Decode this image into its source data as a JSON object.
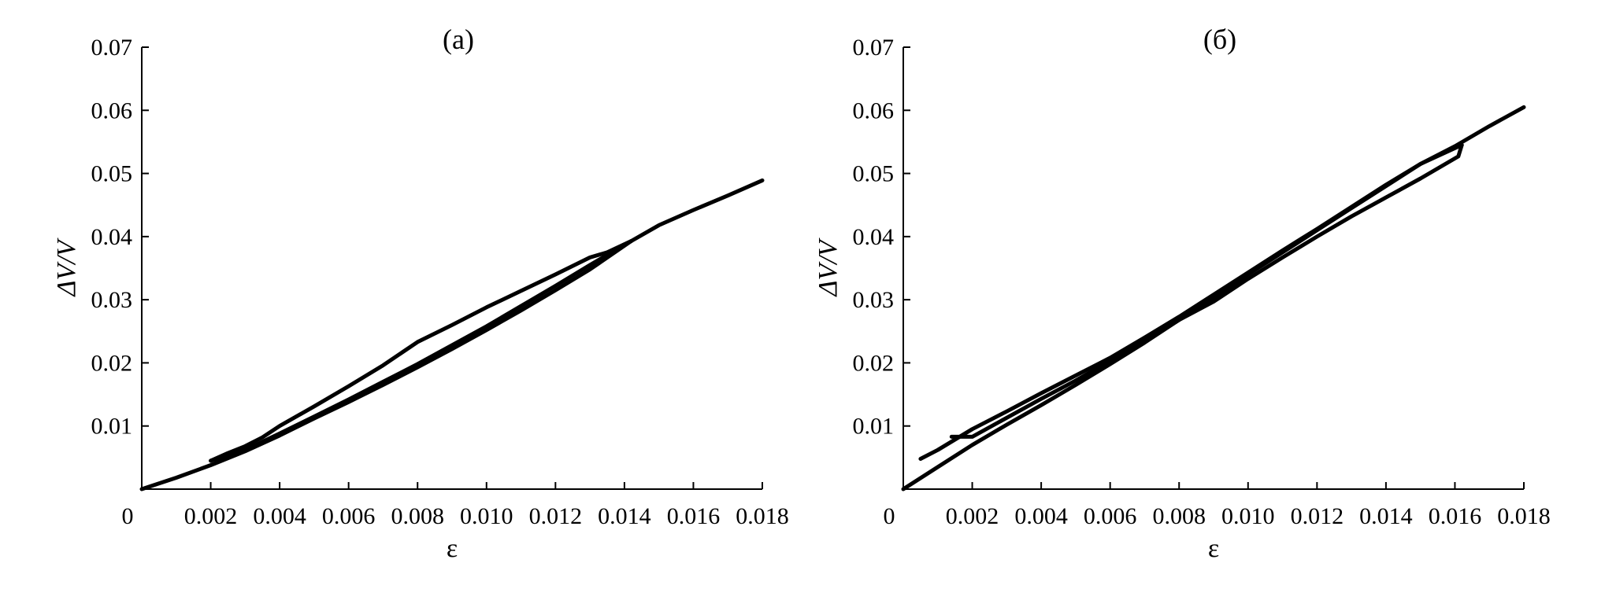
{
  "chart_data": [
    {
      "type": "line",
      "title": "(а)",
      "xlabel": "ε",
      "ylabel": "ΔV/V",
      "xlim": [
        0,
        0.018
      ],
      "ylim": [
        0,
        0.07
      ],
      "origin_label": "0",
      "x_ticks": [
        0.002,
        0.004,
        0.006,
        0.008,
        0.01,
        0.012,
        0.014,
        0.016,
        0.018
      ],
      "x_tick_labels": [
        "0.002",
        "0.004",
        "0.006",
        "0.008",
        "0.010",
        "0.012",
        "0.014",
        "0.016",
        "0.018"
      ],
      "y_ticks": [
        0.01,
        0.02,
        0.03,
        0.04,
        0.05,
        0.06,
        0.07
      ],
      "y_tick_labels": [
        "0.01",
        "0.02",
        "0.03",
        "0.04",
        "0.05",
        "0.06",
        "0.07"
      ],
      "grid": false,
      "series": [
        {
          "points": [
            [
              0.0,
              0.0
            ],
            [
              0.001,
              0.0018
            ],
            [
              0.002,
              0.0038
            ],
            [
              0.003,
              0.006
            ],
            [
              0.004,
              0.0085
            ],
            [
              0.005,
              0.0112
            ],
            [
              0.006,
              0.0138
            ],
            [
              0.007,
              0.0165
            ],
            [
              0.008,
              0.0193
            ],
            [
              0.009,
              0.0222
            ],
            [
              0.01,
              0.0252
            ],
            [
              0.011,
              0.0283
            ],
            [
              0.012,
              0.0315
            ],
            [
              0.013,
              0.0348
            ],
            [
              0.0142,
              0.0393
            ],
            [
              0.015,
              0.0418
            ],
            [
              0.016,
              0.0442
            ],
            [
              0.017,
              0.0465
            ],
            [
              0.018,
              0.0489
            ]
          ]
        },
        {
          "points": [
            [
              0.0142,
              0.0393
            ],
            [
              0.0135,
              0.0375
            ],
            [
              0.013,
              0.0367
            ],
            [
              0.012,
              0.034
            ],
            [
              0.011,
              0.0314
            ],
            [
              0.01,
              0.0288
            ],
            [
              0.009,
              0.026
            ],
            [
              0.008,
              0.0233
            ],
            [
              0.007,
              0.0196
            ],
            [
              0.006,
              0.0163
            ],
            [
              0.005,
              0.0131
            ],
            [
              0.004,
              0.01
            ],
            [
              0.0035,
              0.0082
            ],
            [
              0.003,
              0.0068
            ],
            [
              0.0025,
              0.0057
            ],
            [
              0.002,
              0.0045
            ]
          ]
        },
        {
          "points": [
            [
              0.002,
              0.0045
            ],
            [
              0.003,
              0.0062
            ],
            [
              0.004,
              0.0088
            ],
            [
              0.005,
              0.0115
            ],
            [
              0.006,
              0.0142
            ],
            [
              0.007,
              0.017
            ],
            [
              0.008,
              0.0198
            ],
            [
              0.009,
              0.0228
            ],
            [
              0.01,
              0.0258
            ],
            [
              0.011,
              0.029
            ],
            [
              0.012,
              0.0322
            ],
            [
              0.013,
              0.0355
            ],
            [
              0.0142,
              0.0393
            ]
          ]
        }
      ]
    },
    {
      "type": "line",
      "title": "(б)",
      "xlabel": "ε",
      "ylabel": "ΔV/V",
      "xlim": [
        0,
        0.018
      ],
      "ylim": [
        0,
        0.07
      ],
      "origin_label": "0",
      "x_ticks": [
        0.002,
        0.004,
        0.006,
        0.008,
        0.01,
        0.012,
        0.014,
        0.016,
        0.018
      ],
      "x_tick_labels": [
        "0.002",
        "0.004",
        "0.006",
        "0.008",
        "0.010",
        "0.012",
        "0.014",
        "0.016",
        "0.018"
      ],
      "y_ticks": [
        0.01,
        0.02,
        0.03,
        0.04,
        0.05,
        0.06,
        0.07
      ],
      "y_tick_labels": [
        "0.01",
        "0.02",
        "0.03",
        "0.04",
        "0.05",
        "0.06",
        "0.07"
      ],
      "grid": false,
      "series": [
        {
          "points": [
            [
              0.0,
              0.0
            ],
            [
              0.001,
              0.0035
            ],
            [
              0.002,
              0.007
            ],
            [
              0.003,
              0.0102
            ],
            [
              0.004,
              0.0133
            ],
            [
              0.005,
              0.0165
            ],
            [
              0.006,
              0.0198
            ],
            [
              0.007,
              0.0232
            ],
            [
              0.008,
              0.0268
            ],
            [
              0.009,
              0.0303
            ],
            [
              0.01,
              0.034
            ],
            [
              0.011,
              0.0375
            ],
            [
              0.012,
              0.041
            ],
            [
              0.013,
              0.0445
            ],
            [
              0.014,
              0.048
            ],
            [
              0.015,
              0.0515
            ],
            [
              0.016,
              0.0543
            ],
            [
              0.017,
              0.0575
            ],
            [
              0.018,
              0.0605
            ]
          ]
        },
        {
          "points": [
            [
              0.0162,
              0.0545
            ],
            [
              0.0161,
              0.0527
            ],
            [
              0.015,
              0.0492
            ],
            [
              0.014,
              0.0462
            ],
            [
              0.013,
              0.0432
            ],
            [
              0.012,
              0.04
            ],
            [
              0.011,
              0.0367
            ],
            [
              0.01,
              0.0333
            ],
            [
              0.009,
              0.0297
            ],
            [
              0.008,
              0.0268
            ],
            [
              0.007,
              0.0235
            ],
            [
              0.006,
              0.0203
            ],
            [
              0.005,
              0.0172
            ],
            [
              0.004,
              0.0143
            ],
            [
              0.003,
              0.0113
            ],
            [
              0.002,
              0.0083
            ],
            [
              0.0014,
              0.0083
            ]
          ]
        },
        {
          "points": [
            [
              0.0005,
              0.0048
            ],
            [
              0.001,
              0.0062
            ],
            [
              0.002,
              0.0095
            ],
            [
              0.003,
              0.0123
            ],
            [
              0.004,
              0.0152
            ],
            [
              0.005,
              0.018
            ],
            [
              0.006,
              0.0208
            ],
            [
              0.007,
              0.024
            ],
            [
              0.008,
              0.0273
            ],
            [
              0.009,
              0.0308
            ],
            [
              0.01,
              0.0343
            ],
            [
              0.011,
              0.0378
            ],
            [
              0.012,
              0.0412
            ],
            [
              0.013,
              0.0447
            ],
            [
              0.014,
              0.0482
            ],
            [
              0.015,
              0.0515
            ],
            [
              0.0162,
              0.0545
            ]
          ]
        }
      ]
    }
  ]
}
